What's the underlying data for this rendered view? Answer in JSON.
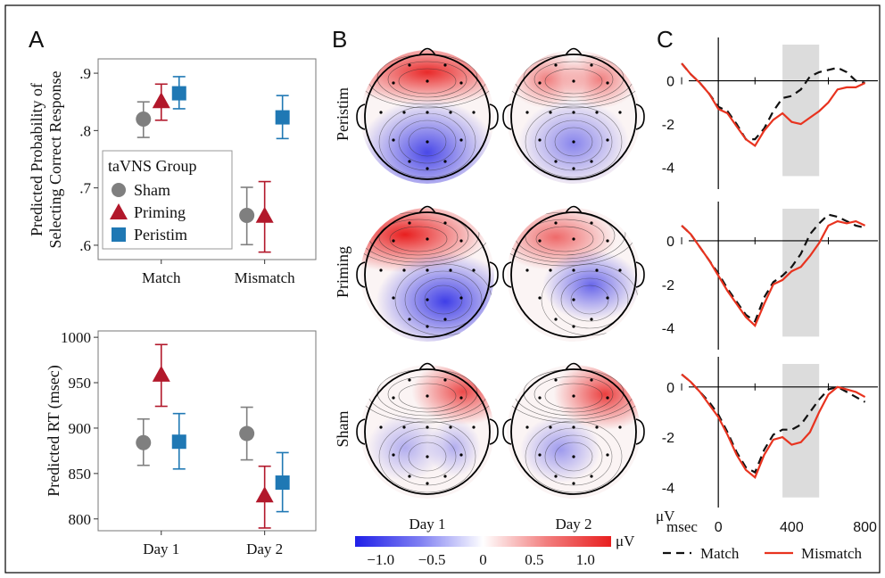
{
  "panel_letters": {
    "a": "A",
    "b": "B",
    "c": "C"
  },
  "colors": {
    "sham": "#7f7f7f",
    "priming": "#b2182b",
    "peristim": "#1f78b4",
    "match": "#111111",
    "mismatch": "#e8331f",
    "window": "#dcdcdc"
  },
  "chart_data": [
    {
      "id": "accuracy",
      "type": "scatter",
      "ylabel_line1": "Predicted Probability of",
      "ylabel_line2": "Selecting Correct Response",
      "categories": [
        "Match",
        "Mismatch"
      ],
      "ylim": [
        0.575,
        0.925
      ],
      "yticks": [
        0.6,
        0.7,
        0.8,
        0.9
      ],
      "ytick_labels": [
        ".6",
        ".7",
        ".8",
        ".9"
      ],
      "legend_title": "taVNS Group",
      "legend_placement": "left-middle",
      "series": [
        {
          "name": "Sham",
          "key": "sham",
          "marker": "circle",
          "values": [
            0.82,
            0.652
          ],
          "lower": [
            0.788,
            0.601
          ],
          "upper": [
            0.85,
            0.701
          ]
        },
        {
          "name": "Priming",
          "key": "priming",
          "marker": "triangle",
          "values": [
            0.85,
            0.65
          ],
          "lower": [
            0.818,
            0.588
          ],
          "upper": [
            0.881,
            0.711
          ]
        },
        {
          "name": "Peristim",
          "key": "peristim",
          "marker": "square",
          "values": [
            0.865,
            0.823
          ],
          "lower": [
            0.838,
            0.786
          ],
          "upper": [
            0.894,
            0.861
          ]
        }
      ]
    },
    {
      "id": "rt",
      "type": "scatter",
      "ylabel": "Predicted RT (msec)",
      "categories": [
        "Day 1",
        "Day 2"
      ],
      "ylim": [
        787,
        1007
      ],
      "yticks": [
        800,
        850,
        900,
        950,
        1000
      ],
      "series": [
        {
          "name": "Sham",
          "key": "sham",
          "marker": "circle",
          "values": [
            884,
            894
          ],
          "lower": [
            859,
            865
          ],
          "upper": [
            910,
            923
          ]
        },
        {
          "name": "Priming",
          "key": "priming",
          "marker": "triangle",
          "values": [
            958,
            825
          ],
          "lower": [
            924,
            790
          ],
          "upper": [
            992,
            858
          ]
        },
        {
          "name": "Peristim",
          "key": "peristim",
          "marker": "square",
          "values": [
            885,
            840
          ],
          "lower": [
            855,
            808
          ],
          "upper": [
            916,
            873
          ]
        }
      ]
    },
    {
      "id": "topomaps",
      "type": "heatmap",
      "rows": [
        "Peristim",
        "Priming",
        "Sham"
      ],
      "columns": [
        "Day 1",
        "Day 2"
      ],
      "colorbar": {
        "min": -1.25,
        "max": 1.25,
        "ticks": [
          -1.0,
          -0.5,
          0,
          0.5,
          1.0
        ],
        "tick_labels": [
          "−1.0",
          "−0.5",
          "0",
          "0.5",
          "1.0"
        ],
        "unit": "μV",
        "low_color": "#1f1fe8",
        "high_color": "#e81f1f"
      }
    },
    {
      "id": "erp",
      "type": "line",
      "x_unit": "msec",
      "y_unit": "μV",
      "xlim": [
        -210,
        870
      ],
      "xticks": [
        0,
        400,
        800
      ],
      "xtick_labels": [
        "0",
        "400",
        "800"
      ],
      "minor_xticks": [
        -200,
        200,
        600
      ],
      "shaded_window": [
        350,
        550
      ],
      "legend": [
        "Match",
        "Mismatch"
      ],
      "panels": [
        {
          "name": "Peristim",
          "ylim": [
            -5,
            2
          ],
          "yticks": [
            -4,
            -2,
            0
          ],
          "ytick_labels": [
            "-4",
            "-2",
            "0"
          ],
          "x": [
            -200,
            -150,
            -100,
            -50,
            0,
            50,
            100,
            150,
            200,
            250,
            300,
            350,
            400,
            450,
            500,
            550,
            600,
            650,
            700,
            750,
            800
          ],
          "match": [
            0.8,
            0.3,
            -0.1,
            -0.6,
            -1.2,
            -1.4,
            -2.0,
            -2.7,
            -2.7,
            -2.2,
            -1.4,
            -0.8,
            -0.7,
            -0.4,
            0.2,
            0.4,
            0.5,
            0.6,
            0.4,
            0.0,
            -0.1
          ],
          "mismatch": [
            0.8,
            0.3,
            -0.1,
            -0.6,
            -1.3,
            -1.5,
            -2.1,
            -2.7,
            -3.0,
            -2.3,
            -1.8,
            -1.5,
            -1.9,
            -2.0,
            -1.7,
            -1.4,
            -1.0,
            -0.4,
            -0.3,
            -0.3,
            -0.1
          ]
        },
        {
          "name": "Priming",
          "ylim": [
            -5,
            1.8
          ],
          "yticks": [
            -4,
            -2,
            0
          ],
          "ytick_labels": [
            "-4",
            "-2",
            "0"
          ],
          "x": [
            -200,
            -150,
            -100,
            -50,
            0,
            50,
            100,
            150,
            200,
            250,
            300,
            350,
            400,
            450,
            500,
            550,
            600,
            650,
            700,
            750,
            800
          ],
          "match": [
            0.7,
            0.3,
            -0.3,
            -0.9,
            -1.5,
            -2.2,
            -2.8,
            -3.4,
            -3.7,
            -2.6,
            -1.9,
            -1.6,
            -1.2,
            -0.6,
            0.3,
            0.8,
            1.2,
            1.1,
            0.9,
            0.7,
            0.6
          ],
          "mismatch": [
            0.7,
            0.3,
            -0.3,
            -0.9,
            -1.6,
            -2.3,
            -2.9,
            -3.5,
            -3.9,
            -2.9,
            -2.0,
            -1.8,
            -1.4,
            -1.2,
            -0.7,
            -0.1,
            0.7,
            0.9,
            0.8,
            0.9,
            0.7
          ]
        },
        {
          "name": "Sham",
          "ylim": [
            -4.8,
            1.2
          ],
          "yticks": [
            -4,
            -2,
            0
          ],
          "ytick_labels": [
            "-4",
            "-2",
            "0"
          ],
          "x": [
            -200,
            -150,
            -100,
            -50,
            0,
            50,
            100,
            150,
            200,
            250,
            300,
            350,
            400,
            450,
            500,
            550,
            600,
            650,
            700,
            750,
            800
          ],
          "match": [
            0.5,
            0.2,
            -0.2,
            -0.6,
            -1.1,
            -1.8,
            -2.6,
            -3.2,
            -3.4,
            -2.5,
            -1.9,
            -1.7,
            -1.7,
            -1.5,
            -1.0,
            -0.5,
            -0.1,
            0.0,
            -0.2,
            -0.4,
            -0.6
          ],
          "mismatch": [
            0.5,
            0.2,
            -0.2,
            -0.7,
            -1.2,
            -1.9,
            -2.7,
            -3.3,
            -3.6,
            -2.7,
            -2.1,
            -2.0,
            -2.3,
            -2.2,
            -1.8,
            -1.0,
            -0.3,
            0.0,
            -0.1,
            -0.2,
            -0.4
          ]
        }
      ]
    }
  ]
}
